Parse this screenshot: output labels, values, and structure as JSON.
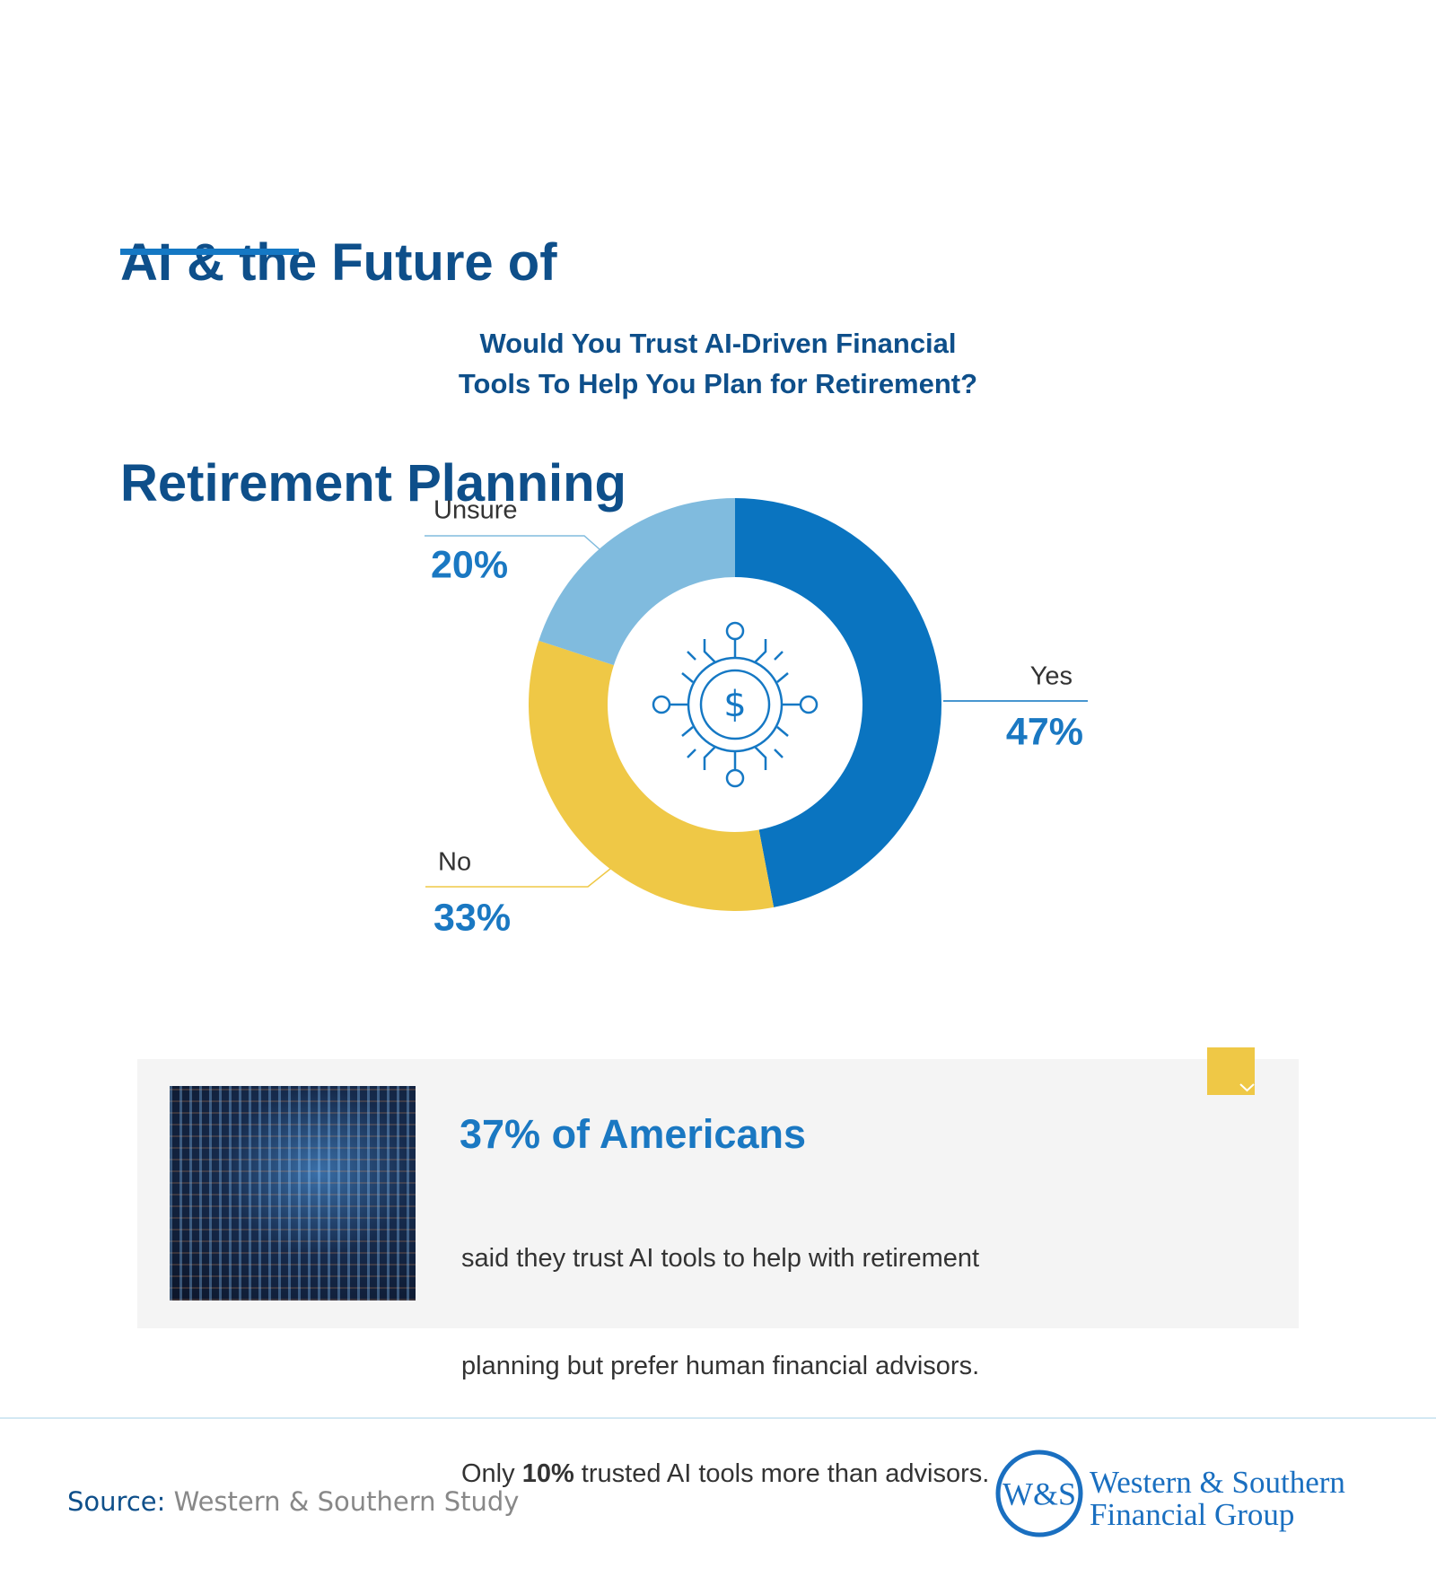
{
  "header": {
    "title": [
      "AI & the Future of",
      "Retirement Planning"
    ]
  },
  "chart_data": {
    "type": "pie",
    "donut": true,
    "title": [
      "Would You Trust AI-Driven Financial",
      "Tools To Help You Plan for Retirement?"
    ],
    "categories": [
      "Yes",
      "No",
      "Unsure"
    ],
    "values": [
      47,
      33,
      20
    ],
    "value_labels": [
      "47%",
      "33%",
      "20%"
    ],
    "colors": [
      "#0a74c0",
      "#efc846",
      "#80bbde"
    ]
  },
  "callout": {
    "headline": "37% of Americans",
    "lines": [
      "said they trust AI tools to help with retirement",
      "planning but prefer human financial advisors."
    ],
    "last_line": [
      "Only ",
      "10%",
      " trusted AI tools more than advisors."
    ]
  },
  "footer": {
    "source_label": "Source:",
    "source": "Western & Southern Study",
    "logo_mark": "W&S",
    "logo_lines": [
      "Western & Southern",
      "Financial Group"
    ]
  }
}
